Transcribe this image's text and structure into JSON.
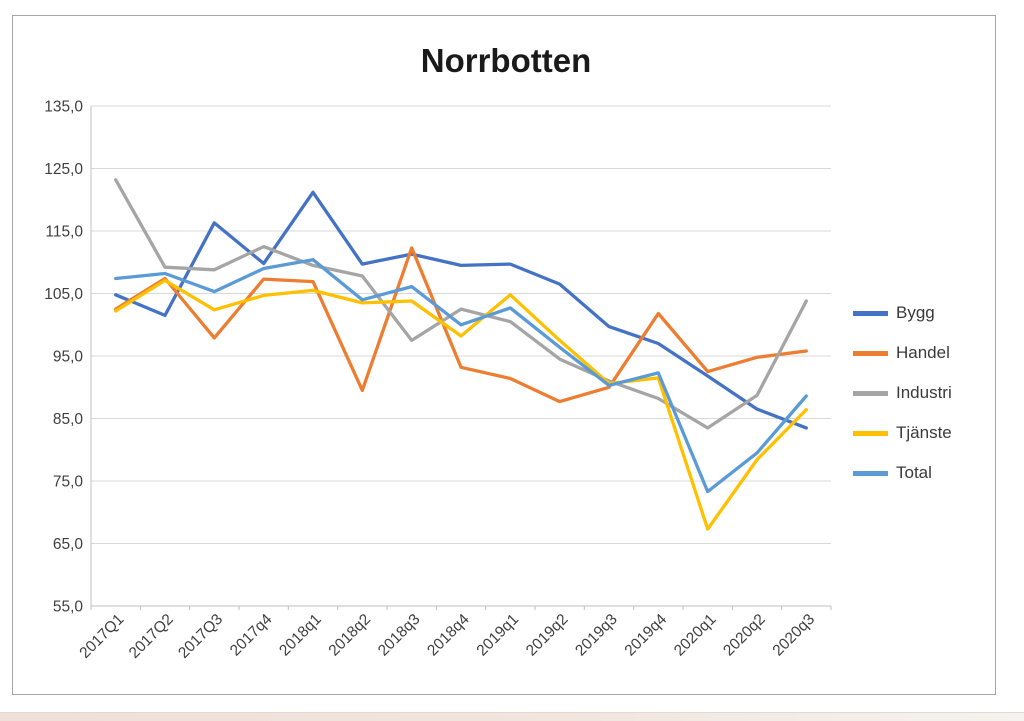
{
  "chart_data": {
    "type": "line",
    "title": "Norrbotten",
    "categories": [
      "2017Q1",
      "2017Q2",
      "2017Q3",
      "2017q4",
      "2018q1",
      "2018q2",
      "2018q3",
      "2018q4",
      "2019q1",
      "2019q2",
      "2019q3",
      "2019q4",
      "2020q1",
      "2020q2",
      "2020q3"
    ],
    "series": [
      {
        "name": "Bygg",
        "color": "#4472C4",
        "values": [
          104.8,
          101.5,
          116.3,
          109.8,
          121.2,
          109.7,
          111.3,
          109.5,
          109.7,
          106.5,
          99.7,
          97.0,
          91.8,
          86.5,
          83.5
        ]
      },
      {
        "name": "Handel",
        "color": "#ED7D31",
        "values": [
          102.5,
          107.4,
          97.9,
          107.3,
          106.9,
          89.5,
          112.3,
          93.2,
          91.4,
          87.7,
          90.0,
          101.8,
          92.5,
          94.8,
          95.8
        ]
      },
      {
        "name": "Industri",
        "color": "#A5A5A5",
        "values": [
          123.2,
          109.2,
          108.8,
          112.5,
          109.5,
          107.8,
          97.5,
          102.5,
          100.5,
          94.5,
          91.0,
          88.2,
          83.5,
          88.7,
          103.8
        ]
      },
      {
        "name": "Tjänste",
        "color": "#FFC000",
        "values": [
          102.2,
          107.1,
          102.4,
          104.7,
          105.5,
          103.5,
          103.8,
          98.2,
          104.8,
          97.5,
          90.6,
          91.5,
          67.3,
          78.4,
          86.4
        ]
      },
      {
        "name": "Total",
        "color": "#5B9BD5",
        "values": [
          107.4,
          108.2,
          105.3,
          109.0,
          110.4,
          104.0,
          106.1,
          100.0,
          102.7,
          96.4,
          90.3,
          92.3,
          73.3,
          79.5,
          88.6
        ]
      }
    ],
    "y_axis": {
      "min": 55,
      "max": 135,
      "step": 10,
      "tick_labels": [
        "135,0",
        "125,0",
        "115,0",
        "105,0",
        "95,0",
        "85,0",
        "75,0",
        "65,0",
        "55,0"
      ]
    },
    "x_axis": {
      "label_rotation_deg": 45
    },
    "legend_position": "right",
    "grid": "horizontal"
  },
  "style": {
    "gridline_color": "#D9D9D9",
    "axis_color": "#BFBFBF",
    "tick_text_color": "#404040",
    "line_width": 3.3
  }
}
